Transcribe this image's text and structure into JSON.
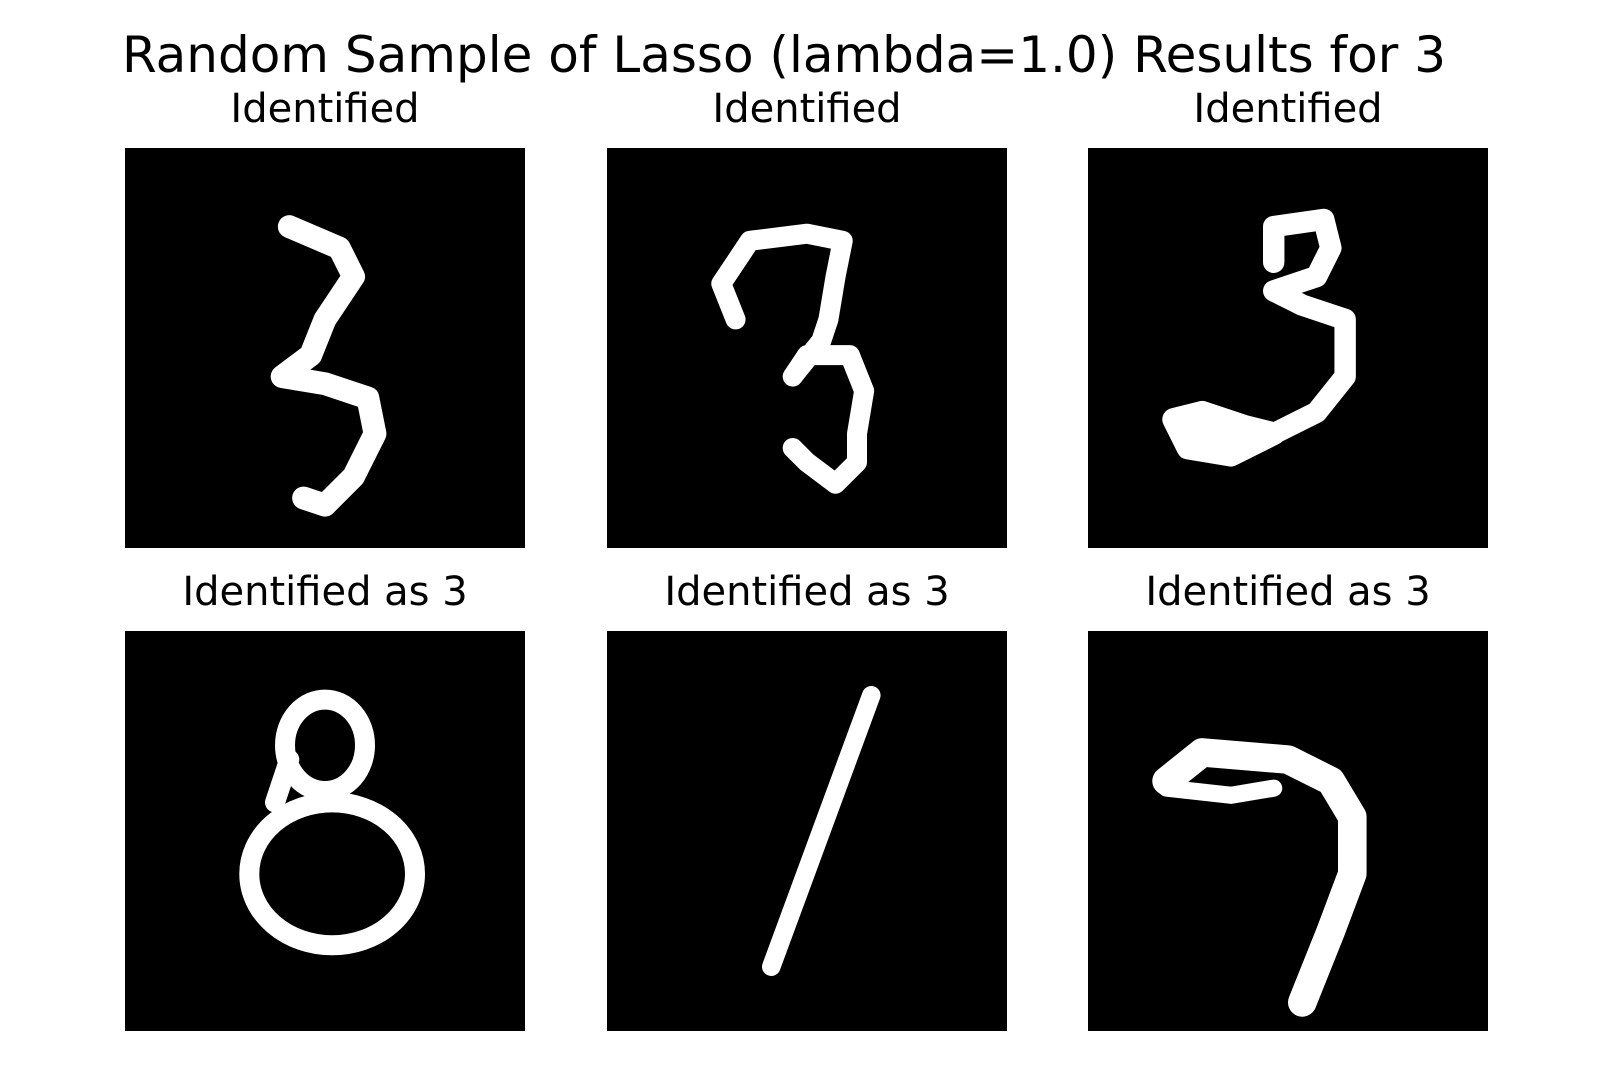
{
  "title": "Random Sample of Lasso (lambda=1.0) Results for 3",
  "panels": [
    {
      "title": "Identified"
    },
    {
      "title": "Identified"
    },
    {
      "title": "Identified"
    },
    {
      "title": "Identified as 3"
    },
    {
      "title": "Identified as 3"
    },
    {
      "title": "Identified as 3"
    }
  ]
}
